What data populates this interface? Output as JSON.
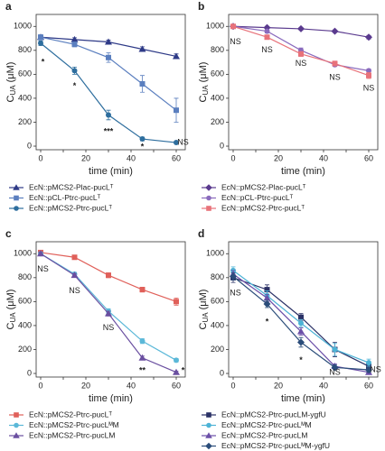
{
  "chart_data": [
    {
      "type": "line",
      "panel": "a",
      "xlabel": "time (min)",
      "ylabel": "C",
      "ylabel_sub": "UA",
      "ylabel_unit": "(μM)",
      "x": [
        0,
        15,
        30,
        45,
        60
      ],
      "xlim": [
        -2,
        64
      ],
      "ylim": [
        -30,
        1100
      ],
      "xticks": [
        0,
        10,
        20,
        30,
        40,
        50,
        60
      ],
      "yticks": [
        0,
        200,
        400,
        600,
        800,
        1000
      ],
      "series": [
        {
          "name": "EcN::pMCS2-Plac-pucLᵀ",
          "color": "#2e3a87",
          "marker": "triangle",
          "values": [
            910,
            890,
            870,
            810,
            750
          ],
          "errors": [
            15,
            15,
            15,
            20,
            20
          ]
        },
        {
          "name": "EcN::pCL-Ptrc-pucLᵀ",
          "color": "#5b7fbf",
          "marker": "square",
          "values": [
            910,
            850,
            740,
            520,
            300
          ],
          "errors": [
            20,
            20,
            40,
            70,
            100
          ]
        },
        {
          "name": "EcN::pMCS2-Ptrc-pucLᵀ",
          "color": "#2e6e9e",
          "marker": "circle",
          "values": [
            860,
            630,
            260,
            60,
            30
          ],
          "errors": [
            20,
            30,
            40,
            15,
            10
          ]
        }
      ],
      "annotations": [
        {
          "text": "*",
          "x": 1,
          "y": 700
        },
        {
          "text": "*",
          "x": 15,
          "y": 500
        },
        {
          "text": "***",
          "x": 30,
          "y": 120
        },
        {
          "text": "*",
          "x": 45,
          "y": -10
        },
        {
          "text": "NS",
          "x": 63,
          "y": 30
        }
      ]
    },
    {
      "type": "line",
      "panel": "b",
      "xlabel": "time (min)",
      "ylabel": "C",
      "ylabel_sub": "UA",
      "ylabel_unit": "(μM)",
      "x": [
        0,
        15,
        30,
        45,
        60
      ],
      "xlim": [
        -2,
        64
      ],
      "ylim": [
        -30,
        1100
      ],
      "xticks": [
        0,
        10,
        20,
        30,
        40,
        50,
        60
      ],
      "yticks": [
        0,
        200,
        400,
        600,
        800,
        1000
      ],
      "series": [
        {
          "name": "EcN::pMCS2-Plac-pucLᵀ",
          "color": "#5a3a8e",
          "marker": "diamond",
          "values": [
            1000,
            990,
            980,
            960,
            910
          ],
          "errors": [
            10,
            10,
            10,
            10,
            15
          ]
        },
        {
          "name": "EcN::pCL-Ptrc-pucLᵀ",
          "color": "#8a6bbd",
          "marker": "circle",
          "values": [
            1000,
            960,
            800,
            680,
            630
          ],
          "errors": [
            10,
            15,
            20,
            15,
            15
          ]
        },
        {
          "name": "EcN::pMCS2-Ptrc-pucLᵀ",
          "color": "#e8727a",
          "marker": "square",
          "values": [
            1000,
            910,
            770,
            690,
            590
          ],
          "errors": [
            10,
            15,
            20,
            20,
            25
          ]
        }
      ],
      "annotations": [
        {
          "text": "NS",
          "x": 1,
          "y": 870
        },
        {
          "text": "NS",
          "x": 15,
          "y": 800
        },
        {
          "text": "NS",
          "x": 30,
          "y": 690
        },
        {
          "text": "NS",
          "x": 45,
          "y": 570
        },
        {
          "text": "NS",
          "x": 60,
          "y": 480
        }
      ]
    },
    {
      "type": "line",
      "panel": "c",
      "xlabel": "time (min)",
      "ylabel": "C",
      "ylabel_sub": "UA",
      "ylabel_unit": "(μM)",
      "x": [
        0,
        15,
        30,
        45,
        60
      ],
      "xlim": [
        -2,
        64
      ],
      "ylim": [
        -30,
        1100
      ],
      "xticks": [
        0,
        10,
        20,
        30,
        40,
        50,
        60
      ],
      "yticks": [
        0,
        200,
        400,
        600,
        800,
        1000
      ],
      "series": [
        {
          "name": "EcN::pMCS2-Ptrc-pucLᵀ",
          "color": "#e0605a",
          "marker": "square",
          "values": [
            1010,
            970,
            820,
            700,
            600
          ],
          "errors": [
            15,
            15,
            20,
            20,
            30
          ]
        },
        {
          "name": "EcN::pMCS2-Ptrc-pucLᴹM",
          "color": "#5bb8d8",
          "marker": "circle",
          "values": [
            1000,
            830,
            520,
            270,
            110
          ],
          "errors": [
            15,
            15,
            20,
            20,
            15
          ]
        },
        {
          "name": "EcN::pMCS2-Ptrc-pucLM",
          "color": "#6a4fa0",
          "marker": "triangle",
          "values": [
            1000,
            820,
            500,
            130,
            10
          ],
          "errors": [
            15,
            15,
            20,
            15,
            10
          ]
        }
      ],
      "annotations": [
        {
          "text": "NS",
          "x": 1,
          "y": 870
        },
        {
          "text": "NS",
          "x": 15,
          "y": 690
        },
        {
          "text": "NS",
          "x": 30,
          "y": 380
        },
        {
          "text": "**",
          "x": 45,
          "y": 20
        },
        {
          "text": "*",
          "x": 63,
          "y": 20
        }
      ]
    },
    {
      "type": "line",
      "panel": "d",
      "xlabel": "time (min)",
      "ylabel": "C",
      "ylabel_sub": "UA",
      "ylabel_unit": "(μM)",
      "x": [
        0,
        15,
        30,
        45,
        60
      ],
      "xlim": [
        -2,
        64
      ],
      "ylim": [
        -30,
        1100
      ],
      "xticks": [
        0,
        10,
        20,
        30,
        40,
        50,
        60
      ],
      "yticks": [
        0,
        200,
        400,
        600,
        800,
        1000
      ],
      "series": [
        {
          "name": "EcN::pMCS2-Ptrc-pucLM-ygfU",
          "color": "#2a3166",
          "marker": "square",
          "values": [
            800,
            700,
            470,
            200,
            60
          ],
          "errors": [
            40,
            40,
            30,
            60,
            40
          ]
        },
        {
          "name": "EcN::pMCS2-Ptrc-pucLᴹM",
          "color": "#4db3d6",
          "marker": "circle",
          "values": [
            860,
            650,
            420,
            200,
            90
          ],
          "errors": [
            30,
            40,
            30,
            50,
            30
          ]
        },
        {
          "name": "EcN::pMCS2-Ptrc-pucLM",
          "color": "#6b4fa8",
          "marker": "triangle",
          "values": [
            830,
            630,
            350,
            60,
            10
          ],
          "errors": [
            30,
            30,
            30,
            20,
            10
          ]
        },
        {
          "name": "EcN::pMCS2-Ptrc-pucLᴹM-ygfU",
          "color": "#2b4d7a",
          "marker": "diamond",
          "values": [
            810,
            580,
            260,
            50,
            30
          ],
          "errors": [
            30,
            30,
            40,
            20,
            20
          ]
        }
      ],
      "annotations": [
        {
          "text": "NS",
          "x": 1,
          "y": 670
        },
        {
          "text": "*",
          "x": 15,
          "y": 430
        },
        {
          "text": "*",
          "x": 30,
          "y": 110
        },
        {
          "text": "NS",
          "x": 45,
          "y": 5
        },
        {
          "text": "NS",
          "x": 63,
          "y": 30
        }
      ]
    }
  ]
}
